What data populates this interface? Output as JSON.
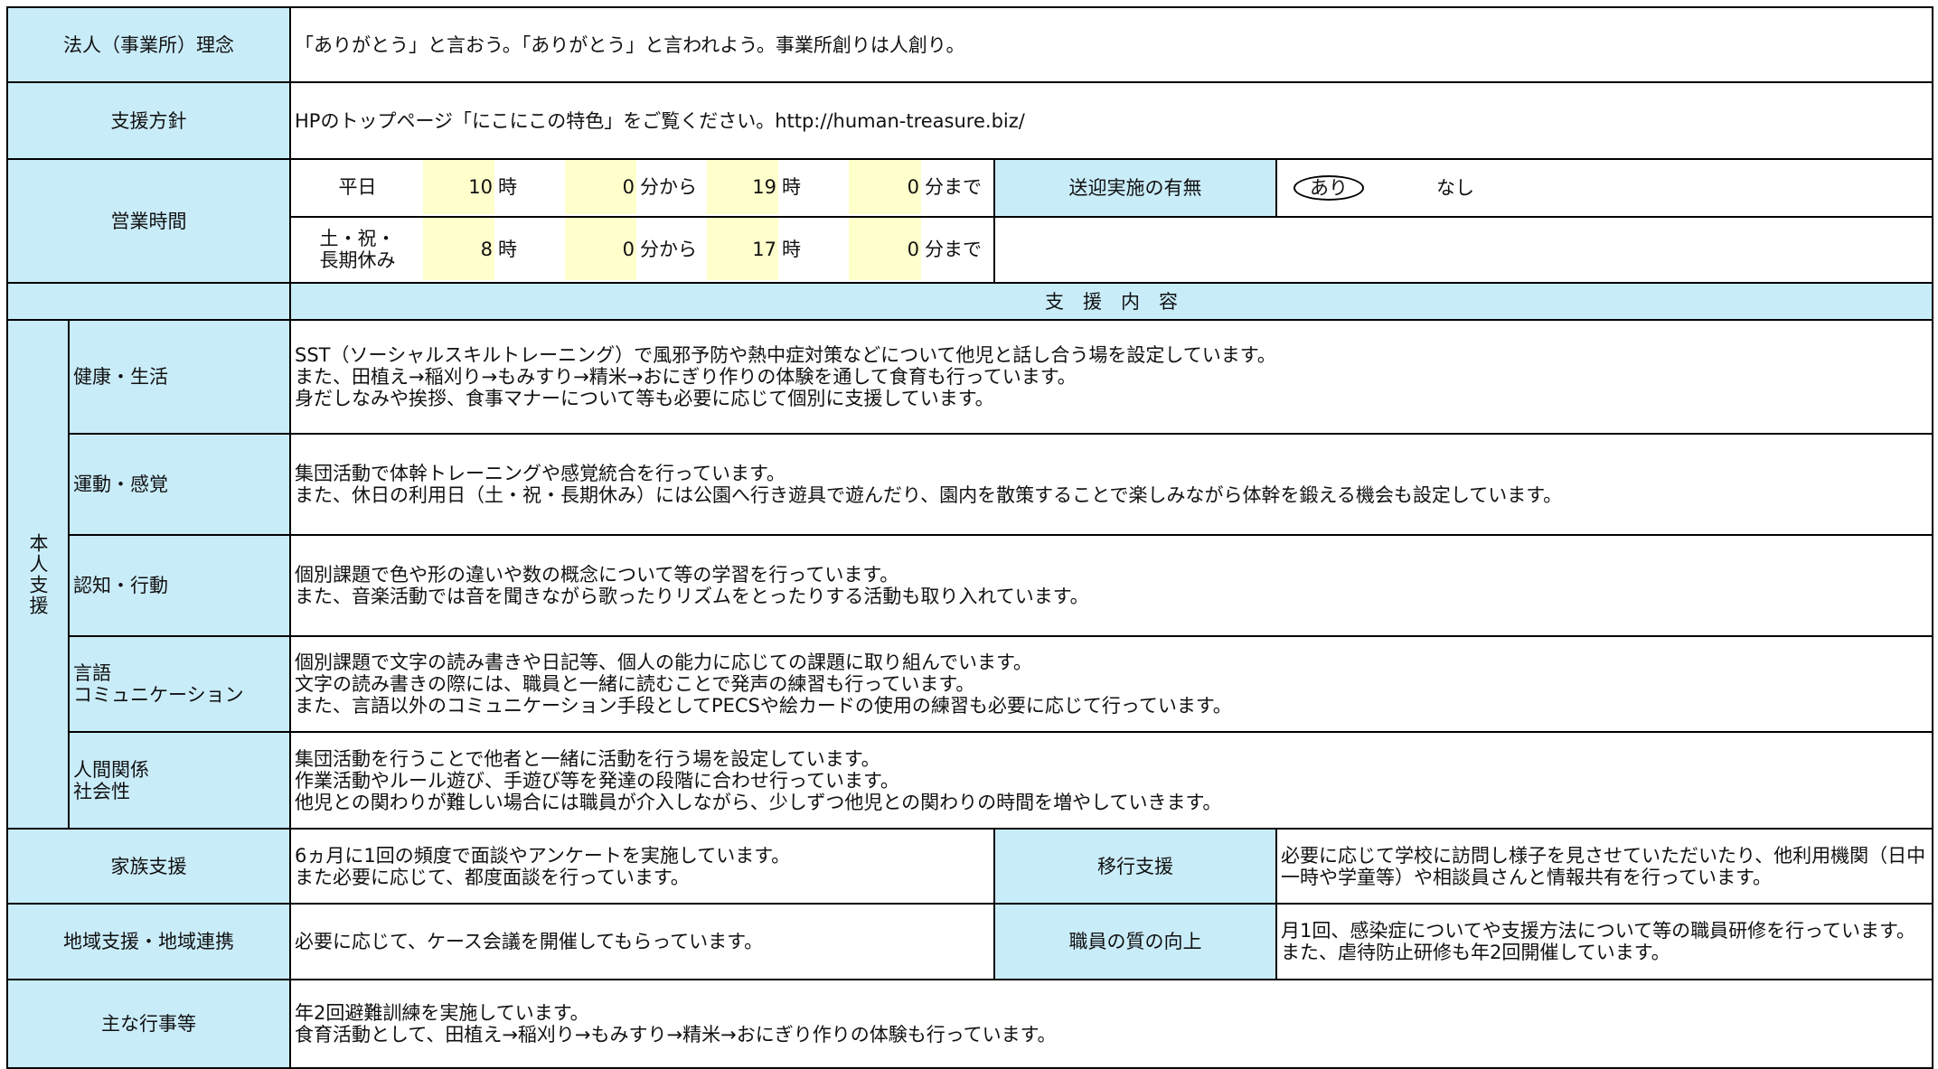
{
  "philosophy": {
    "label": "法人（事業所）理念",
    "text": "「ありがとう」と言おう。「ありがとう」と言われよう。事業所創りは人創り。"
  },
  "policy": {
    "label": "支援方針",
    "text": "HPのトップページ「にこにこの特色」をご覧ください。http://human-treasure.biz/"
  },
  "hours": {
    "label": "営業時間",
    "rows": [
      {
        "day": "平日",
        "open_h": "10",
        "h_unit": "時",
        "open_m": "0",
        "from": "分から",
        "close_h": "19",
        "h_unit2": "時",
        "close_m": "0",
        "until": "分まで"
      },
      {
        "day": "土・祝・\n長期休み",
        "open_h": "8",
        "h_unit": "時",
        "open_m": "0",
        "from": "分から",
        "close_h": "17",
        "h_unit2": "時",
        "close_m": "0",
        "until": "分まで"
      }
    ],
    "transport": {
      "label": "送迎実施の有無",
      "yes": "あり",
      "no": "なし"
    }
  },
  "support_header": "支　援　内　容",
  "personal": {
    "label": "本人支援",
    "items": [
      {
        "label": "健康・生活",
        "text": "SST（ソーシャルスキルトレーニング）で風邪予防や熱中症対策などについて他児と話し合う場を設定しています。\nまた、田植え→稲刈り→もみすり→精米→おにぎり作りの体験を通して食育も行っています。\n身だしなみや挨拶、食事マナーについて等も必要に応じて個別に支援しています。"
      },
      {
        "label": "運動・感覚",
        "text": "集団活動で体幹トレーニングや感覚統合を行っています。\nまた、休日の利用日（土・祝・長期休み）には公園へ行き遊具で遊んだり、園内を散策することで楽しみながら体幹を鍛える機会も設定しています。"
      },
      {
        "label": "認知・行動",
        "text": "個別課題で色や形の違いや数の概念について等の学習を行っています。\nまた、音楽活動では音を聞きながら歌ったりリズムをとったりする活動も取り入れています。"
      },
      {
        "label": "言語\nコミュニケーション",
        "text": "個別課題で文字の読み書きや日記等、個人の能力に応じての課題に取り組んでいます。\n文字の読み書きの際には、職員と一緒に読むことで発声の練習も行っています。\nまた、言語以外のコミュニケーション手段としてPECSや絵カードの使用の練習も必要に応じて行っています。"
      },
      {
        "label": "人間関係\n社会性",
        "text": "集団活動を行うことで他者と一緒に活動を行う場を設定しています。\n作業活動やルール遊び、手遊び等を発達の段階に合わせ行っています。\n他児との関わりが難しい場合には職員が介入しながら、少しずつ他児との関わりの時間を増やしていきます。"
      }
    ]
  },
  "family": {
    "label": "家族支援",
    "text": "6ヵ月に1回の頻度で面談やアンケートを実施しています。\nまた必要に応じて、都度面談を行っています。"
  },
  "transition": {
    "label": "移行支援",
    "text": "必要に応じて学校に訪問し様子を見させていただいたり、他利用機関（日中一時や学童等）や相談員さんと情報共有を行っています。"
  },
  "region": {
    "label": "地域支援・地域連携",
    "text": "必要に応じて、ケース会議を開催してもらっています。"
  },
  "staff": {
    "label": "職員の質の向上",
    "text": "月1回、感染症についてや支援方法について等の職員研修を行っています。\nまた、虐待防止研修も年2回開催しています。"
  },
  "events": {
    "label": "主な行事等",
    "text": "年2回避難訓練を実施しています。\n食育活動として、田植え→稲刈り→もみすり→精米→おにぎり作りの体験も行っています。"
  }
}
